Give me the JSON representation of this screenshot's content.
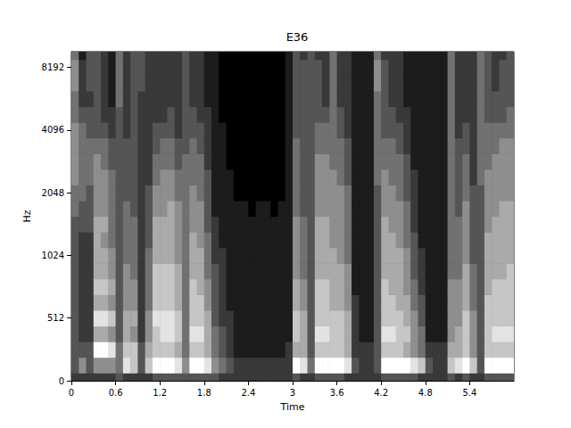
{
  "chart_data": {
    "type": "heatmap",
    "title": "E36",
    "x_label": "Time",
    "y_label": "Hz",
    "color": "gray",
    "grid": false,
    "xlim": [
      0,
      6
    ],
    "xticks": [
      0,
      0.6,
      1.2,
      1.8,
      2.4,
      3,
      3.6,
      4.2,
      4.8,
      5.4
    ],
    "yticks": [
      0,
      512,
      1024,
      2048,
      4096,
      8192
    ],
    "clim": [
      0,
      9
    ],
    "x": [
      0,
      0.1,
      0.2,
      0.3,
      0.4,
      0.5,
      0.6,
      0.7,
      0.8,
      0.9,
      1,
      1.1,
      1.2,
      1.3,
      1.4,
      1.5,
      1.6,
      1.7,
      1.8,
      1.9,
      2,
      2.1,
      2.2,
      2.3,
      2.4,
      2.5,
      2.6,
      2.7,
      2.8,
      2.9,
      3,
      3.1,
      3.2,
      3.3,
      3.4,
      3.5,
      3.6,
      3.7,
      3.8,
      3.9,
      4,
      4.1,
      4.2,
      4.3,
      4.4,
      4.5,
      4.6,
      4.7,
      4.8,
      4.9,
      5,
      5.1,
      5.2,
      5.3,
      5.4,
      5.5,
      5.6,
      5.7,
      5.8,
      5.9
    ],
    "y": [
      0,
      128,
      256,
      384,
      512,
      609,
      724,
      861,
      1024,
      1218,
      1448,
      1722,
      2048,
      2435,
      2896,
      3444,
      4096,
      4871,
      5793,
      6889,
      8192,
      9742
    ],
    "cells": [
      [
        2,
        3,
        3,
        3,
        3,
        3,
        3,
        3,
        3,
        3,
        3,
        4,
        4,
        5,
        5,
        5,
        5,
        4,
        4,
        5,
        5,
        4
      ],
      [
        2,
        5,
        3,
        2,
        2,
        2,
        2,
        2,
        2,
        2,
        3,
        3,
        4,
        4,
        4,
        4,
        4,
        3,
        2,
        2,
        2,
        1
      ],
      [
        2,
        3,
        3,
        2,
        2,
        2,
        2,
        2,
        2,
        2,
        3,
        3,
        3,
        4,
        4,
        4,
        3,
        3,
        2,
        3,
        3,
        3
      ],
      [
        2,
        5,
        9,
        6,
        8,
        6,
        7,
        6,
        6,
        6,
        6,
        5,
        5,
        5,
        5,
        4,
        3,
        3,
        3,
        3,
        3,
        3
      ],
      [
        2,
        5,
        9,
        6,
        8,
        6,
        7,
        6,
        6,
        5,
        6,
        5,
        5,
        5,
        4,
        4,
        3,
        2,
        2,
        2,
        2,
        2
      ],
      [
        2,
        5,
        8,
        5,
        7,
        5,
        6,
        5,
        5,
        4,
        4,
        4,
        4,
        4,
        3,
        3,
        2,
        2,
        1,
        1,
        1,
        1
      ],
      [
        3,
        4,
        4,
        3,
        3,
        3,
        3,
        3,
        3,
        3,
        3,
        3,
        3,
        3,
        3,
        3,
        3,
        3,
        4,
        4,
        4,
        4
      ],
      [
        2,
        8,
        7,
        6,
        6,
        5,
        5,
        5,
        4,
        4,
        4,
        4,
        3,
        3,
        3,
        3,
        2,
        2,
        2,
        2,
        2,
        2
      ],
      [
        2,
        7,
        7,
        5,
        6,
        5,
        5,
        4,
        4,
        4,
        4,
        3,
        3,
        3,
        3,
        3,
        3,
        3,
        3,
        3,
        3,
        3
      ],
      [
        2,
        3,
        3,
        2,
        2,
        2,
        2,
        2,
        2,
        2,
        2,
        2,
        2,
        2,
        2,
        2,
        2,
        2,
        2,
        3,
        3,
        3
      ],
      [
        2,
        7,
        6,
        5,
        5,
        4,
        4,
        4,
        4,
        3,
        3,
        3,
        3,
        2,
        2,
        2,
        2,
        2,
        2,
        2,
        2,
        2
      ],
      [
        3,
        9,
        7,
        7,
        8,
        7,
        7,
        7,
        6,
        6,
        6,
        5,
        5,
        4,
        4,
        3,
        3,
        2,
        2,
        2,
        2,
        2
      ],
      [
        3,
        9,
        7,
        8,
        8,
        7,
        7,
        7,
        6,
        6,
        6,
        5,
        5,
        5,
        4,
        4,
        3,
        2,
        2,
        2,
        2,
        2
      ],
      [
        3,
        9,
        7,
        8,
        8,
        7,
        7,
        7,
        6,
        6,
        6,
        6,
        5,
        5,
        4,
        4,
        3,
        3,
        2,
        2,
        2,
        2
      ],
      [
        3,
        8,
        6,
        7,
        7,
        6,
        6,
        6,
        5,
        5,
        5,
        5,
        4,
        4,
        3,
        3,
        2,
        2,
        2,
        2,
        2,
        2
      ],
      [
        3,
        5,
        4,
        4,
        4,
        4,
        4,
        4,
        4,
        4,
        4,
        4,
        4,
        4,
        4,
        3,
        3,
        3,
        3,
        3,
        3,
        3
      ],
      [
        3,
        9,
        7,
        8,
        7,
        7,
        7,
        6,
        6,
        6,
        5,
        5,
        5,
        4,
        4,
        4,
        3,
        3,
        2,
        2,
        2,
        2
      ],
      [
        3,
        9,
        7,
        8,
        7,
        7,
        6,
        6,
        6,
        5,
        5,
        5,
        4,
        4,
        4,
        3,
        3,
        2,
        2,
        2,
        2,
        2
      ],
      [
        3,
        8,
        6,
        6,
        6,
        5,
        5,
        4,
        4,
        4,
        3,
        3,
        3,
        3,
        2,
        2,
        2,
        2,
        1,
        1,
        1,
        1
      ],
      [
        3,
        5,
        4,
        4,
        3,
        3,
        3,
        3,
        2,
        2,
        2,
        1,
        1,
        1,
        1,
        1,
        1,
        1,
        1,
        1,
        1,
        1
      ],
      [
        2,
        4,
        3,
        3,
        2,
        2,
        2,
        2,
        2,
        1,
        1,
        1,
        1,
        1,
        1,
        1,
        1,
        0,
        0,
        0,
        0,
        0
      ],
      [
        2,
        3,
        2,
        2,
        2,
        1,
        1,
        1,
        1,
        1,
        1,
        1,
        1,
        1,
        0,
        0,
        0,
        0,
        0,
        0,
        0,
        0
      ],
      [
        2,
        2,
        1,
        1,
        1,
        1,
        1,
        1,
        1,
        1,
        1,
        1,
        0,
        0,
        0,
        0,
        0,
        0,
        0,
        0,
        0,
        0
      ],
      [
        2,
        2,
        1,
        1,
        1,
        1,
        1,
        1,
        1,
        1,
        1,
        1,
        0,
        0,
        0,
        0,
        0,
        0,
        0,
        0,
        0,
        0
      ],
      [
        2,
        2,
        1,
        1,
        1,
        1,
        1,
        1,
        1,
        1,
        1,
        0,
        0,
        0,
        0,
        0,
        0,
        0,
        0,
        0,
        0,
        0
      ],
      [
        2,
        2,
        1,
        1,
        1,
        1,
        1,
        1,
        1,
        1,
        1,
        1,
        0,
        0,
        0,
        0,
        0,
        0,
        0,
        0,
        0,
        0
      ],
      [
        2,
        2,
        1,
        1,
        1,
        1,
        1,
        1,
        1,
        1,
        1,
        1,
        0,
        0,
        0,
        0,
        0,
        0,
        0,
        0,
        0,
        0
      ],
      [
        2,
        2,
        1,
        1,
        1,
        1,
        1,
        1,
        1,
        1,
        1,
        0,
        0,
        0,
        0,
        0,
        0,
        0,
        0,
        0,
        0,
        0
      ],
      [
        2,
        2,
        1,
        1,
        1,
        1,
        1,
        1,
        1,
        1,
        1,
        1,
        0,
        0,
        0,
        0,
        0,
        0,
        0,
        0,
        0,
        0
      ],
      [
        2,
        2,
        2,
        1,
        1,
        1,
        1,
        1,
        1,
        1,
        1,
        1,
        1,
        1,
        1,
        1,
        1,
        1,
        1,
        1,
        1,
        1
      ],
      [
        3,
        9,
        6,
        7,
        7,
        6,
        6,
        5,
        5,
        5,
        5,
        4,
        4,
        4,
        4,
        4,
        3,
        3,
        3,
        3,
        3,
        3
      ],
      [
        2,
        8,
        6,
        6,
        6,
        5,
        5,
        4,
        4,
        4,
        4,
        3,
        3,
        3,
        3,
        3,
        3,
        3,
        3,
        3,
        3,
        2
      ],
      [
        2,
        4,
        3,
        3,
        3,
        3,
        3,
        3,
        3,
        3,
        3,
        3,
        3,
        3,
        3,
        3,
        3,
        3,
        3,
        3,
        3,
        3
      ],
      [
        3,
        9,
        7,
        8,
        7,
        7,
        7,
        6,
        6,
        6,
        6,
        5,
        5,
        5,
        5,
        4,
        4,
        3,
        3,
        3,
        3,
        2
      ],
      [
        3,
        9,
        7,
        8,
        7,
        7,
        7,
        6,
        6,
        6,
        6,
        5,
        5,
        5,
        5,
        4,
        4,
        3,
        2,
        2,
        2,
        2
      ],
      [
        3,
        9,
        7,
        7,
        7,
        6,
        6,
        6,
        6,
        5,
        5,
        5,
        5,
        5,
        4,
        4,
        4,
        4,
        4,
        4,
        4,
        4
      ],
      [
        3,
        9,
        7,
        7,
        7,
        6,
        6,
        6,
        5,
        5,
        5,
        5,
        5,
        4,
        4,
        4,
        3,
        3,
        2,
        2,
        2,
        2
      ],
      [
        2,
        8,
        6,
        6,
        6,
        5,
        5,
        5,
        4,
        4,
        4,
        4,
        4,
        3,
        3,
        3,
        2,
        2,
        2,
        2,
        2,
        2
      ],
      [
        2,
        3,
        2,
        2,
        2,
        2,
        1,
        1,
        1,
        1,
        1,
        1,
        1,
        1,
        1,
        1,
        1,
        1,
        1,
        1,
        1,
        1
      ],
      [
        2,
        2,
        2,
        1,
        1,
        1,
        1,
        1,
        1,
        1,
        1,
        1,
        1,
        1,
        1,
        1,
        1,
        1,
        1,
        1,
        1,
        1
      ],
      [
        2,
        2,
        2,
        1,
        1,
        1,
        1,
        1,
        1,
        1,
        1,
        1,
        1,
        1,
        1,
        1,
        1,
        1,
        1,
        1,
        1,
        1
      ],
      [
        2,
        3,
        3,
        3,
        3,
        3,
        3,
        3,
        3,
        3,
        3,
        3,
        3,
        4,
        4,
        4,
        4,
        4,
        4,
        5,
        5,
        4
      ],
      [
        3,
        9,
        7,
        8,
        7,
        7,
        7,
        6,
        6,
        6,
        6,
        5,
        5,
        5,
        4,
        4,
        3,
        3,
        3,
        3,
        3,
        2
      ],
      [
        3,
        9,
        7,
        8,
        7,
        7,
        6,
        6,
        6,
        6,
        5,
        5,
        5,
        4,
        4,
        4,
        3,
        3,
        2,
        2,
        2,
        2
      ],
      [
        3,
        9,
        7,
        7,
        7,
        6,
        6,
        6,
        6,
        5,
        5,
        5,
        4,
        4,
        4,
        3,
        3,
        2,
        2,
        2,
        2,
        2
      ],
      [
        3,
        9,
        6,
        7,
        6,
        6,
        5,
        5,
        5,
        4,
        4,
        4,
        3,
        3,
        3,
        2,
        2,
        2,
        1,
        1,
        1,
        1
      ],
      [
        3,
        8,
        5,
        5,
        5,
        4,
        4,
        3,
        3,
        3,
        2,
        2,
        2,
        2,
        1,
        1,
        1,
        1,
        1,
        1,
        1,
        1
      ],
      [
        2,
        7,
        4,
        4,
        3,
        3,
        2,
        2,
        2,
        1,
        1,
        1,
        1,
        1,
        1,
        1,
        1,
        1,
        1,
        1,
        1,
        1
      ],
      [
        2,
        3,
        2,
        1,
        1,
        1,
        1,
        1,
        1,
        1,
        1,
        1,
        1,
        1,
        1,
        1,
        1,
        1,
        1,
        1,
        1,
        1
      ],
      [
        2,
        2,
        2,
        1,
        1,
        1,
        1,
        1,
        1,
        1,
        1,
        1,
        1,
        1,
        1,
        1,
        1,
        1,
        1,
        1,
        1,
        1
      ],
      [
        2,
        2,
        2,
        1,
        1,
        1,
        1,
        1,
        1,
        1,
        1,
        1,
        1,
        1,
        1,
        1,
        1,
        1,
        1,
        1,
        1,
        1
      ],
      [
        3,
        7,
        6,
        5,
        5,
        5,
        5,
        4,
        4,
        4,
        4,
        4,
        4,
        4,
        4,
        4,
        4,
        4,
        4,
        4,
        4,
        4
      ],
      [
        2,
        8,
        6,
        6,
        5,
        5,
        5,
        4,
        4,
        4,
        4,
        3,
        3,
        3,
        3,
        3,
        2,
        2,
        2,
        2,
        2,
        2
      ],
      [
        3,
        9,
        7,
        7,
        7,
        6,
        6,
        6,
        5,
        5,
        5,
        5,
        4,
        4,
        4,
        3,
        3,
        2,
        2,
        2,
        2,
        2
      ],
      [
        2,
        7,
        5,
        5,
        5,
        4,
        4,
        4,
        3,
        3,
        3,
        3,
        3,
        2,
        2,
        2,
        2,
        2,
        2,
        2,
        2,
        2
      ],
      [
        2,
        3,
        3,
        3,
        3,
        3,
        3,
        3,
        3,
        3,
        3,
        3,
        3,
        4,
        4,
        4,
        4,
        4,
        4,
        4,
        4,
        4
      ],
      [
        3,
        9,
        7,
        7,
        7,
        7,
        6,
        6,
        6,
        6,
        5,
        5,
        5,
        5,
        4,
        4,
        4,
        3,
        3,
        3,
        3,
        3
      ],
      [
        3,
        9,
        7,
        8,
        7,
        7,
        7,
        6,
        6,
        6,
        6,
        5,
        5,
        5,
        5,
        4,
        4,
        3,
        3,
        2,
        2,
        2
      ],
      [
        3,
        9,
        7,
        8,
        7,
        7,
        7,
        6,
        6,
        6,
        6,
        6,
        5,
        5,
        5,
        5,
        4,
        3,
        3,
        3,
        3,
        2
      ],
      [
        3,
        9,
        7,
        8,
        7,
        7,
        7,
        7,
        6,
        6,
        6,
        6,
        5,
        5,
        5,
        5,
        4,
        4,
        3,
        3,
        3,
        3
      ]
    ]
  }
}
